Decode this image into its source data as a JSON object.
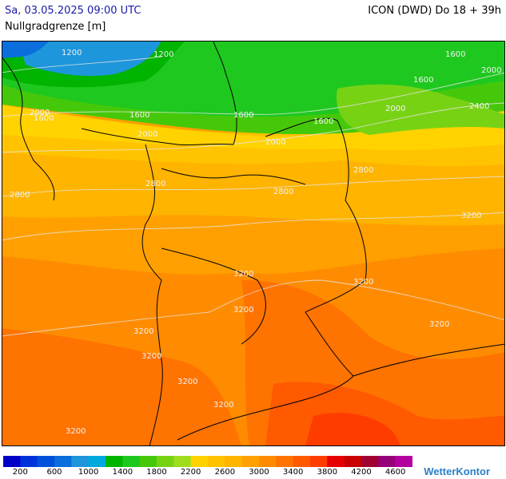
{
  "header": {
    "valid_time": "Sa, 03.05.2025 09:00 UTC",
    "model_run": "ICON (DWD) Do 18 + 39h",
    "parameter": "Nullgradgrenze [m]"
  },
  "map": {
    "contour_labels": [
      "1200",
      "1200",
      "1600",
      "1600",
      "1600",
      "1600",
      "1600",
      "1600",
      "2000",
      "2000",
      "2000",
      "2000",
      "2000",
      "2400",
      "2800",
      "2800",
      "2800",
      "2800",
      "3200",
      "3200",
      "3200",
      "3200",
      "3200",
      "3200",
      "3200",
      "3200",
      "3200",
      "3200"
    ]
  },
  "legend": {
    "colors": [
      "#0000c8",
      "#0032dc",
      "#0050dc",
      "#0a6edc",
      "#1e96dc",
      "#00aadc",
      "#00b400",
      "#1ec81e",
      "#46c80a",
      "#78d214",
      "#a0dc1e",
      "#ffd200",
      "#ffc300",
      "#ffb400",
      "#ffa000",
      "#ff8c00",
      "#ff7300",
      "#ff5a00",
      "#ff3c00",
      "#e60000",
      "#c80000",
      "#a00032",
      "#960078",
      "#b400a0"
    ],
    "tick_labels": [
      "200",
      "600",
      "1000",
      "1400",
      "1800",
      "2200",
      "2600",
      "3000",
      "3400",
      "3800",
      "4200",
      "4600"
    ]
  },
  "brand": "WetterKontor"
}
